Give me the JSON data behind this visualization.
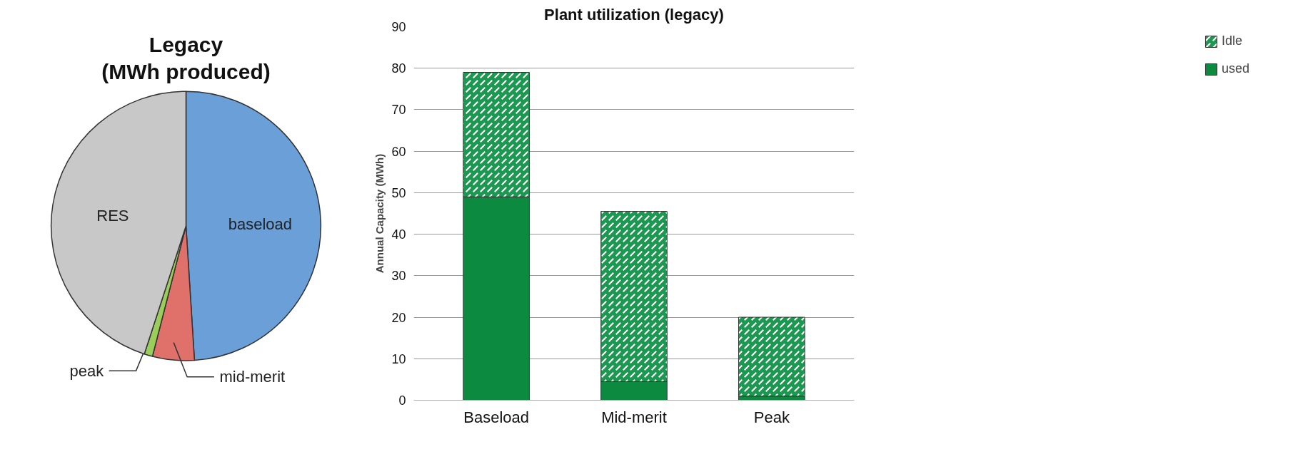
{
  "chart_data": [
    {
      "type": "pie",
      "title": "Legacy (MWh produced)",
      "categories": [
        "baseload",
        "mid-merit",
        "peak",
        "RES"
      ],
      "values": [
        49,
        5,
        1,
        45
      ],
      "colors": [
        "#6a9fd8",
        "#e0716a",
        "#9acd5a",
        "#c8c8c8"
      ]
    },
    {
      "type": "bar",
      "title": "Plant utilization (legacy)",
      "ylabel": "Annual Capacity (MWh)",
      "categories": [
        "Baseload",
        "Mid-merit",
        "Peak"
      ],
      "stacked": true,
      "series": [
        {
          "name": "used",
          "color": "#0b8a40",
          "values": [
            49,
            4.5,
            1
          ]
        },
        {
          "name": "Idle",
          "color": "#1a9a50",
          "values": [
            30,
            41,
            19
          ]
        }
      ],
      "ylim": [
        0,
        90
      ],
      "yticks": [
        0,
        10,
        20,
        30,
        40,
        50,
        60,
        70,
        80,
        90
      ],
      "grid": "y",
      "legend": "right"
    }
  ]
}
